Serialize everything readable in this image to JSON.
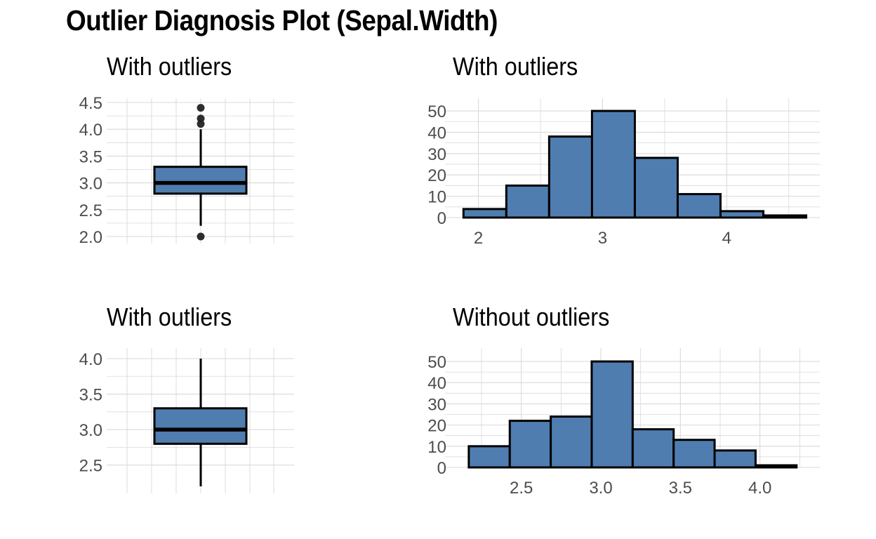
{
  "title": "Outlier Diagnosis Plot (Sepal.Width)",
  "colors": {
    "fill": "#4f7db0",
    "outline": "#000000",
    "grid": "#d9d9d9",
    "tick": "#4d4d4d"
  },
  "chart_data": [
    {
      "type": "boxplot",
      "title": "With outliers",
      "ylim": [
        2.0,
        4.5
      ],
      "yticks": [
        "2.0",
        "2.5",
        "3.0",
        "3.5",
        "4.0",
        "4.5"
      ],
      "ytick_values": [
        2.0,
        2.5,
        3.0,
        3.5,
        4.0,
        4.5
      ],
      "box": {
        "min": 2.2,
        "q1": 2.8,
        "median": 3.0,
        "q3": 3.3,
        "max": 4.0
      },
      "outliers": [
        2.0,
        4.1,
        4.2,
        4.4
      ]
    },
    {
      "type": "bar",
      "title": "With outliers",
      "xlim": [
        1.85,
        4.75
      ],
      "xticks": [
        "2",
        "3",
        "4"
      ],
      "xtick_values": [
        2,
        3,
        4
      ],
      "yticks": [
        "0",
        "10",
        "20",
        "30",
        "40",
        "50"
      ],
      "ytick_values": [
        0,
        10,
        20,
        30,
        40,
        50
      ],
      "ylim": [
        0,
        52
      ],
      "bin_edges": [
        1.88,
        2.225,
        2.57,
        2.915,
        3.26,
        3.605,
        3.95,
        4.295,
        4.64
      ],
      "values": [
        4,
        15,
        38,
        50,
        28,
        11,
        3,
        1
      ]
    },
    {
      "type": "boxplot",
      "title": "With outliers",
      "ylim": [
        2.2,
        4.0
      ],
      "yticks": [
        "2.5",
        "3.0",
        "3.5",
        "4.0"
      ],
      "ytick_values": [
        2.5,
        3.0,
        3.5,
        4.0
      ],
      "box": {
        "min": 2.2,
        "q1": 2.8,
        "median": 3.0,
        "q3": 3.3,
        "max": 4.0
      },
      "outliers": []
    },
    {
      "type": "bar",
      "title": "Without outliers",
      "xlim": [
        2.1,
        4.35
      ],
      "xticks": [
        "2.5",
        "3.0",
        "3.5",
        "4.0"
      ],
      "xtick_values": [
        2.5,
        3.0,
        3.5,
        4.0
      ],
      "yticks": [
        "0",
        "10",
        "20",
        "30",
        "40",
        "50"
      ],
      "ytick_values": [
        0,
        10,
        20,
        30,
        40,
        50
      ],
      "ylim": [
        0,
        52
      ],
      "bin_edges": [
        2.17,
        2.4275,
        2.685,
        2.9425,
        3.2,
        3.4575,
        3.715,
        3.9725,
        4.23
      ],
      "values": [
        10,
        22,
        24,
        50,
        18,
        13,
        8,
        1
      ]
    }
  ]
}
